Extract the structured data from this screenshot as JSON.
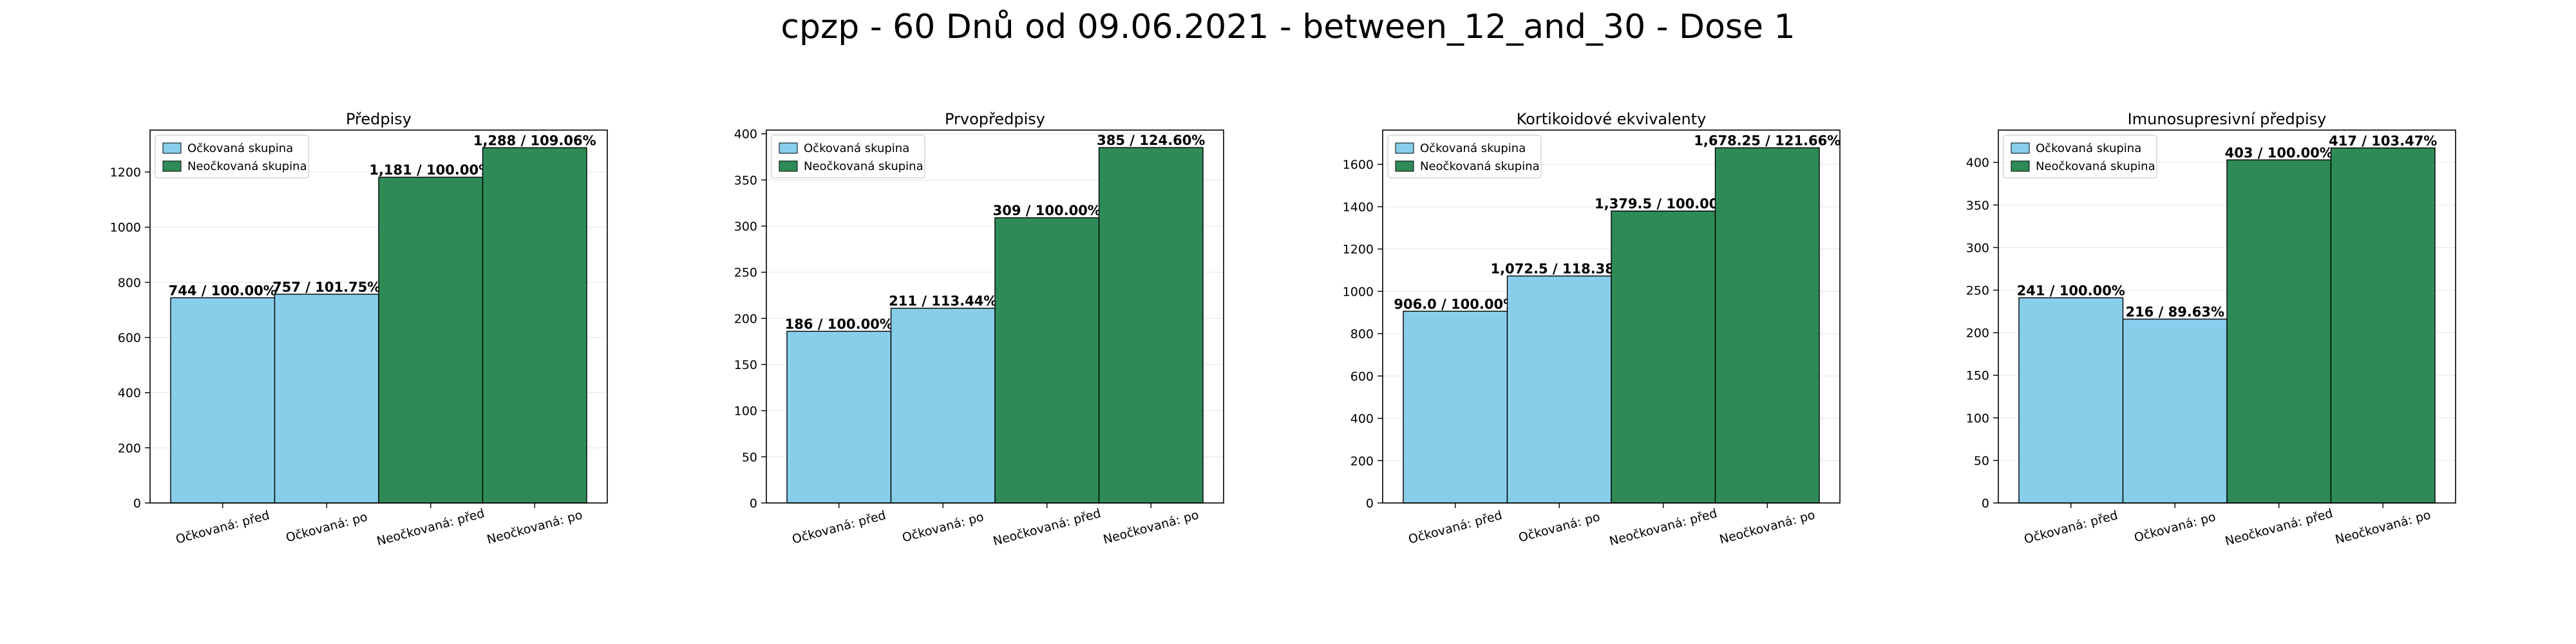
{
  "suptitle": "cpzp - 60 Dnů od 09.06.2021 - between_12_and_30 - Dose 1",
  "colors": {
    "vaccinated": "#87ceeb",
    "unvaccinated": "#2e8b57"
  },
  "legend_labels": [
    "Očkovaná skupina",
    "Neočkovaná skupina"
  ],
  "chart_data": [
    {
      "type": "bar",
      "title": "Předpisy",
      "categories": [
        "Očkovaná: před",
        "Očkovaná: po",
        "Neočkovaná: před",
        "Neočkovaná: po"
      ],
      "values": [
        744,
        757,
        1181,
        1288
      ],
      "value_labels": [
        "744 / 100.00%",
        "757 / 101.75%",
        "1,181 / 100.00%",
        "1,288 / 109.06%"
      ],
      "ylim": [
        0,
        1352
      ],
      "yticks": [
        0,
        200,
        400,
        600,
        800,
        1000,
        1200
      ],
      "legend": "top-left",
      "grid": true
    },
    {
      "type": "bar",
      "title": "Prvopředpisy",
      "categories": [
        "Očkovaná: před",
        "Očkovaná: po",
        "Neočkovaná: před",
        "Neočkovaná: po"
      ],
      "values": [
        186,
        211,
        309,
        385
      ],
      "value_labels": [
        "186 / 100.00%",
        "211 / 113.44%",
        "309 / 100.00%",
        "385 / 124.60%"
      ],
      "ylim": [
        0,
        404
      ],
      "yticks": [
        0,
        50,
        100,
        150,
        200,
        250,
        300,
        350,
        400
      ],
      "legend": "top-left",
      "grid": true
    },
    {
      "type": "bar",
      "title": "Kortikoidové ekvivalenty",
      "categories": [
        "Očkovaná: před",
        "Očkovaná: po",
        "Neočkovaná: před",
        "Neočkovaná: po"
      ],
      "values": [
        906.0,
        1072.5,
        1379.5,
        1678.25
      ],
      "value_labels": [
        "906.0 / 100.00%",
        "1,072.5 / 118.38%",
        "1,379.5 / 100.00%",
        "1,678.25 / 121.66%"
      ],
      "ylim": [
        0,
        1762
      ],
      "yticks": [
        0,
        200,
        400,
        600,
        800,
        1000,
        1200,
        1400,
        1600
      ],
      "legend": "top-left",
      "grid": true
    },
    {
      "type": "bar",
      "title": "Imunosupresivní předpisy",
      "categories": [
        "Očkovaná: před",
        "Očkovaná: po",
        "Neočkovaná: před",
        "Neočkovaná: po"
      ],
      "values": [
        241,
        216,
        403,
        417
      ],
      "value_labels": [
        "241 / 100.00%",
        "216 / 89.63%",
        "403 / 100.00%",
        "417 / 103.47%"
      ],
      "ylim": [
        0,
        438
      ],
      "yticks": [
        0,
        50,
        100,
        150,
        200,
        250,
        300,
        350,
        400
      ],
      "legend": "top-left",
      "grid": true
    }
  ]
}
